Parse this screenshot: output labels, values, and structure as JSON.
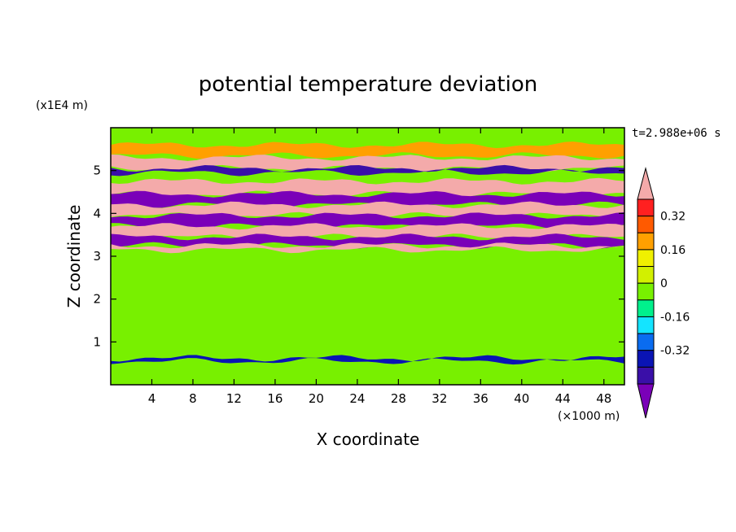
{
  "chart_data": {
    "type": "heatmap",
    "title": "potential temperature deviation",
    "xlabel": "X coordinate",
    "ylabel": "Z coordinate",
    "x_unit": "(×1000 m)",
    "y_unit": "(x1E4 m)",
    "time_label": "t=2.988e+06 s",
    "xlim": [
      0,
      50
    ],
    "ylim": [
      0,
      6
    ],
    "x_ticks": [
      4,
      8,
      12,
      16,
      20,
      24,
      28,
      32,
      36,
      40,
      44,
      48
    ],
    "y_ticks": [
      1,
      2,
      3,
      4,
      5
    ],
    "colorbar": {
      "levels": [
        -0.4,
        -0.32,
        -0.24,
        -0.16,
        -0.08,
        0,
        0.08,
        0.16,
        0.24,
        0.32,
        0.4
      ],
      "tick_labels": [
        "0.32",
        "0.16",
        "0",
        "-0.16",
        "-0.32"
      ],
      "colors": [
        "#7a00b8",
        "#3a0fa8",
        "#0a14b4",
        "#0a6cf0",
        "#14e4ff",
        "#00f08c",
        "#78f000",
        "#d2f000",
        "#f0f000",
        "#ffa000",
        "#ff5a00",
        "#ff2020",
        "#f4aaaa"
      ]
    },
    "bands": [
      {
        "zmin": 5.35,
        "zmax": 5.6,
        "value": 0.24
      },
      {
        "zmin": 5.05,
        "zmax": 5.3,
        "value": 0.41
      },
      {
        "zmin": 4.95,
        "zmax": 5.05,
        "value": -0.38
      },
      {
        "zmin": 4.45,
        "zmax": 4.75,
        "value": 0.41
      },
      {
        "zmin": 4.2,
        "zmax": 4.45,
        "value": -0.41
      },
      {
        "zmin": 3.95,
        "zmax": 4.2,
        "value": 0.41
      },
      {
        "zmin": 3.7,
        "zmax": 3.95,
        "value": -0.41
      },
      {
        "zmin": 3.45,
        "zmax": 3.7,
        "value": 0.41
      },
      {
        "zmin": 3.25,
        "zmax": 3.45,
        "value": -0.41
      },
      {
        "zmin": 3.15,
        "zmax": 3.25,
        "value": 0.41
      },
      {
        "zmin": 0.55,
        "zmax": 0.62,
        "value": -0.3
      }
    ],
    "background_value": 0.02
  }
}
